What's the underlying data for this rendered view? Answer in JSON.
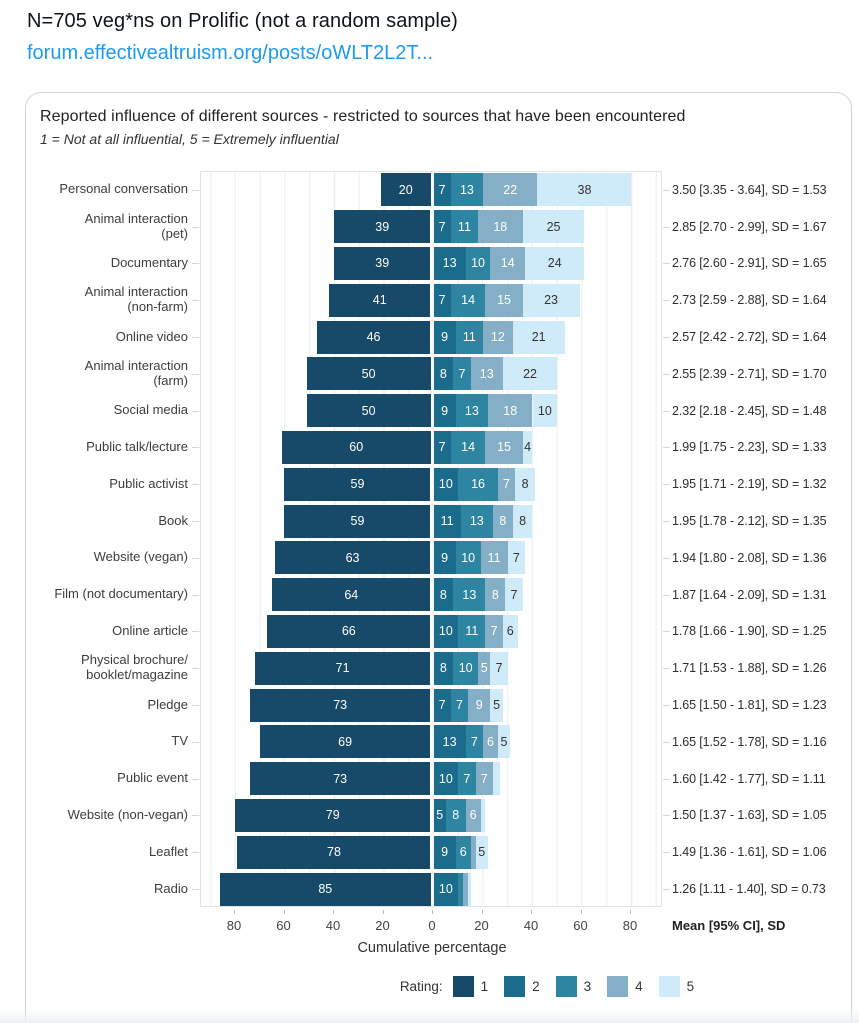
{
  "tweet": {
    "title": "N=705 veg*ns on Prolific (not a random sample)",
    "link_text": "forum.effectivealtruism.org/posts/oWLT2L2T...",
    "link_color": "#1d9bf0"
  },
  "chart_data": {
    "type": "bar",
    "variant": "diverging-stacked-likert",
    "title": "Reported influence of different sources - restricted to sources that have been encountered",
    "subtitle": "1 = Not at all influential, 5 = Extremely influential",
    "xlabel": "Cumulative percentage",
    "x_ticks": [
      "80",
      "60",
      "40",
      "20",
      "0",
      "20",
      "40",
      "60",
      "80"
    ],
    "x_tick_interval": 20,
    "x_axis_note": "rating 1 extends left of zero; ratings 2-5 stack right of zero; values are percentages",
    "mean_header": "Mean [95% CI], SD",
    "grid": "vertical lines every 10%",
    "legend": {
      "label": "Rating:",
      "values": [
        "1",
        "2",
        "3",
        "4",
        "5"
      ]
    },
    "colors": [
      "#164a68",
      "#1b6b8c",
      "#2d85a1",
      "#85afc6",
      "#cfeaf9"
    ],
    "label_min_pct": 4,
    "rows": [
      {
        "label": "Personal conversation",
        "values": [
          20,
          7,
          13,
          22,
          38
        ],
        "mean": "3.50 [3.35 - 3.64], SD = 1.53"
      },
      {
        "label": "Animal interaction\n(pet)",
        "values": [
          39,
          7,
          11,
          18,
          25
        ],
        "mean": "2.85 [2.70 - 2.99], SD = 1.67"
      },
      {
        "label": "Documentary",
        "values": [
          39,
          13,
          10,
          14,
          24
        ],
        "mean": "2.76 [2.60 - 2.91], SD = 1.65"
      },
      {
        "label": "Animal interaction\n(non-farm)",
        "values": [
          41,
          7,
          14,
          15,
          23
        ],
        "mean": "2.73 [2.59 - 2.88], SD = 1.64"
      },
      {
        "label": "Online video",
        "values": [
          46,
          9,
          11,
          12,
          21
        ],
        "mean": "2.57 [2.42 - 2.72], SD = 1.64"
      },
      {
        "label": "Animal interaction\n(farm)",
        "values": [
          50,
          8,
          7,
          13,
          22
        ],
        "mean": "2.55 [2.39 - 2.71], SD = 1.70"
      },
      {
        "label": "Social media",
        "values": [
          50,
          9,
          13,
          18,
          10
        ],
        "mean": "2.32 [2.18 - 2.45], SD = 1.48"
      },
      {
        "label": "Public talk/lecture",
        "values": [
          60,
          7,
          14,
          15,
          4
        ],
        "mean": "1.99 [1.75 - 2.23], SD = 1.33"
      },
      {
        "label": "Public activist",
        "values": [
          59,
          10,
          16,
          7,
          8
        ],
        "mean": "1.95 [1.71 - 2.19], SD = 1.32"
      },
      {
        "label": "Book",
        "values": [
          59,
          11,
          13,
          8,
          8
        ],
        "mean": "1.95 [1.78 - 2.12], SD = 1.35"
      },
      {
        "label": "Website (vegan)",
        "values": [
          63,
          9,
          10,
          11,
          7
        ],
        "mean": "1.94 [1.80 - 2.08], SD = 1.36"
      },
      {
        "label": "Film (not documentary)",
        "values": [
          64,
          8,
          13,
          8,
          7
        ],
        "mean": "1.87 [1.64 - 2.09], SD = 1.31"
      },
      {
        "label": "Online article",
        "values": [
          66,
          10,
          11,
          7,
          6
        ],
        "mean": "1.78 [1.66 - 1.90], SD = 1.25"
      },
      {
        "label": "Physical brochure/\nbooklet/magazine",
        "values": [
          71,
          8,
          10,
          5,
          7
        ],
        "mean": "1.71 [1.53 - 1.88], SD = 1.26"
      },
      {
        "label": "Pledge",
        "values": [
          73,
          7,
          7,
          9,
          5
        ],
        "mean": "1.65 [1.50 - 1.81], SD = 1.23"
      },
      {
        "label": "TV",
        "values": [
          69,
          13,
          7,
          6,
          5
        ],
        "mean": "1.65 [1.52 - 1.78], SD = 1.16"
      },
      {
        "label": "Public event",
        "values": [
          73,
          10,
          7,
          7,
          3
        ],
        "mean": "1.60 [1.42 - 1.77], SD = 1.11"
      },
      {
        "label": "Website (non-vegan)",
        "values": [
          79,
          5,
          8,
          6,
          2
        ],
        "mean": "1.50 [1.37 - 1.63], SD = 1.05"
      },
      {
        "label": "Leaflet",
        "values": [
          78,
          9,
          6,
          2,
          5
        ],
        "mean": "1.49 [1.36 - 1.61], SD = 1.06"
      },
      {
        "label": "Radio",
        "values": [
          85,
          10,
          2,
          2,
          1
        ],
        "mean": "1.26 [1.11 - 1.40], SD = 0.73"
      }
    ]
  }
}
